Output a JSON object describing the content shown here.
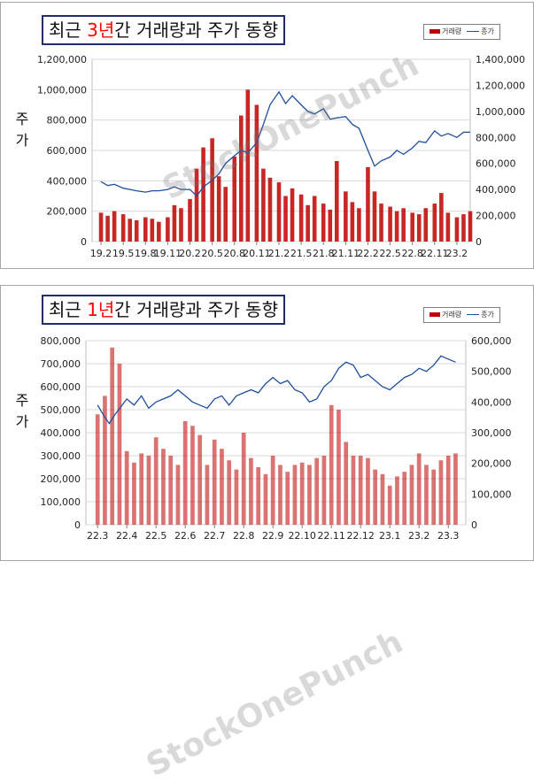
{
  "charts": [
    {
      "title_pre": "최근 ",
      "title_hl": "3년",
      "title_post": "간 거래량과 주가 동향",
      "y_label_1": "주",
      "y_label_2": "가",
      "watermark": "StockOnePunch",
      "legend_volume": "거래량",
      "legend_price": "종가"
    },
    {
      "title_pre": "최근 ",
      "title_hl": "1년",
      "title_post": "간 거래량과 주가 동향",
      "y_label_1": "주",
      "y_label_2": "가",
      "watermark": "StockOnePunch",
      "legend_volume": "거래량",
      "legend_price": "종가"
    }
  ],
  "chart_data": [
    {
      "type": "bar",
      "secondary_type": "line",
      "title": "최근 3년간 거래량과 주가 동향",
      "ylabel": "주가",
      "x_ticks": [
        "19.2",
        "19.5",
        "19.8",
        "19.11",
        "20.2",
        "20.5",
        "20.8",
        "20.11",
        "21.2",
        "21.5",
        "21.8",
        "21.11",
        "22.2",
        "22.5",
        "22.8",
        "22.11",
        "23.2"
      ],
      "y_left_ticks": [
        "0",
        "200,000",
        "400,000",
        "600,000",
        "800,000",
        "1,000,000",
        "1,200,000"
      ],
      "y_right_ticks": [
        "0",
        "200,000",
        "400,000",
        "600,000",
        "800,000",
        "1,000,000",
        "1,200,000",
        "1,400,000"
      ],
      "ylim_left": [
        0,
        1200000
      ],
      "ylim_right": [
        0,
        1400000
      ],
      "grid": true,
      "legend_placement": "top-right",
      "colors": {
        "volume": "#c00000",
        "price": "#1f4e9c"
      },
      "series": [
        {
          "name": "거래량",
          "axis": "left",
          "type": "bar",
          "points": [
            [
              0,
              190000
            ],
            [
              0.3,
              170000
            ],
            [
              0.6,
              200000
            ],
            [
              1,
              180000
            ],
            [
              1.3,
              150000
            ],
            [
              1.6,
              140000
            ],
            [
              2,
              160000
            ],
            [
              2.3,
              150000
            ],
            [
              2.6,
              130000
            ],
            [
              3,
              160000
            ],
            [
              3.3,
              240000
            ],
            [
              3.6,
              220000
            ],
            [
              4,
              280000
            ],
            [
              4.3,
              480000
            ],
            [
              4.6,
              620000
            ],
            [
              5,
              680000
            ],
            [
              5.3,
              430000
            ],
            [
              5.6,
              360000
            ],
            [
              6,
              560000
            ],
            [
              6.3,
              830000
            ],
            [
              6.6,
              1000000
            ],
            [
              7,
              900000
            ],
            [
              7.3,
              480000
            ],
            [
              7.6,
              420000
            ],
            [
              8,
              390000
            ],
            [
              8.3,
              300000
            ],
            [
              8.6,
              350000
            ],
            [
              9,
              310000
            ],
            [
              9.3,
              240000
            ],
            [
              9.6,
              300000
            ],
            [
              10,
              250000
            ],
            [
              10.3,
              210000
            ],
            [
              10.6,
              530000
            ],
            [
              11,
              330000
            ],
            [
              11.3,
              260000
            ],
            [
              11.6,
              220000
            ],
            [
              12,
              490000
            ],
            [
              12.3,
              330000
            ],
            [
              12.6,
              250000
            ],
            [
              13,
              230000
            ],
            [
              13.3,
              200000
            ],
            [
              13.6,
              220000
            ],
            [
              14,
              190000
            ],
            [
              14.3,
              180000
            ],
            [
              14.6,
              220000
            ],
            [
              15,
              250000
            ],
            [
              15.3,
              320000
            ],
            [
              15.6,
              190000
            ],
            [
              16,
              160000
            ],
            [
              16.3,
              180000
            ],
            [
              16.6,
              200000
            ]
          ]
        },
        {
          "name": "종가",
          "axis": "right",
          "type": "line",
          "points": [
            [
              0,
              460000
            ],
            [
              0.3,
              430000
            ],
            [
              0.6,
              440000
            ],
            [
              1,
              410000
            ],
            [
              1.3,
              400000
            ],
            [
              1.6,
              390000
            ],
            [
              2,
              380000
            ],
            [
              2.3,
              390000
            ],
            [
              2.6,
              390000
            ],
            [
              3,
              400000
            ],
            [
              3.3,
              420000
            ],
            [
              3.6,
              400000
            ],
            [
              4,
              400000
            ],
            [
              4.3,
              350000
            ],
            [
              4.6,
              420000
            ],
            [
              5,
              470000
            ],
            [
              5.3,
              520000
            ],
            [
              5.6,
              600000
            ],
            [
              6,
              660000
            ],
            [
              6.3,
              700000
            ],
            [
              6.6,
              680000
            ],
            [
              7,
              760000
            ],
            [
              7.3,
              900000
            ],
            [
              7.6,
              1050000
            ],
            [
              8,
              1150000
            ],
            [
              8.3,
              1060000
            ],
            [
              8.6,
              1120000
            ],
            [
              9,
              1050000
            ],
            [
              9.3,
              1000000
            ],
            [
              9.6,
              980000
            ],
            [
              10,
              1020000
            ],
            [
              10.3,
              940000
            ],
            [
              10.6,
              950000
            ],
            [
              11,
              960000
            ],
            [
              11.3,
              900000
            ],
            [
              11.6,
              870000
            ],
            [
              12,
              700000
            ],
            [
              12.3,
              580000
            ],
            [
              12.6,
              620000
            ],
            [
              13,
              650000
            ],
            [
              13.3,
              700000
            ],
            [
              13.6,
              670000
            ],
            [
              14,
              720000
            ],
            [
              14.3,
              770000
            ],
            [
              14.6,
              760000
            ],
            [
              15,
              850000
            ],
            [
              15.3,
              810000
            ],
            [
              15.6,
              830000
            ],
            [
              16,
              800000
            ],
            [
              16.3,
              840000
            ],
            [
              16.6,
              840000
            ]
          ]
        }
      ]
    },
    {
      "type": "bar",
      "secondary_type": "line",
      "title": "최근 1년간 거래량과 주가 동향",
      "ylabel": "주가",
      "x_ticks": [
        "22.3",
        "22.4",
        "22.5",
        "22.6",
        "22.7",
        "22.8",
        "22.9",
        "22.10",
        "22.11",
        "22.12",
        "23.1",
        "23.2",
        "23.3"
      ],
      "y_left_ticks": [
        "0",
        "100,000",
        "200,000",
        "300,000",
        "400,000",
        "500,000",
        "600,000",
        "700,000",
        "800,000"
      ],
      "y_right_ticks": [
        "0",
        "100,000",
        "200,000",
        "300,000",
        "400,000",
        "500,000",
        "600,000"
      ],
      "ylim_left": [
        0,
        800000
      ],
      "ylim_right": [
        0,
        600000
      ],
      "grid": true,
      "legend_placement": "top-right",
      "colors": {
        "volume": "#c00000",
        "price": "#1f4e9c"
      },
      "series": [
        {
          "name": "거래량",
          "axis": "left",
          "type": "bar",
          "points": [
            [
              0,
              480000
            ],
            [
              0.25,
              560000
            ],
            [
              0.5,
              770000
            ],
            [
              0.75,
              700000
            ],
            [
              1,
              320000
            ],
            [
              1.25,
              270000
            ],
            [
              1.5,
              310000
            ],
            [
              1.75,
              300000
            ],
            [
              2,
              380000
            ],
            [
              2.25,
              330000
            ],
            [
              2.5,
              300000
            ],
            [
              2.75,
              260000
            ],
            [
              3,
              450000
            ],
            [
              3.25,
              430000
            ],
            [
              3.5,
              390000
            ],
            [
              3.75,
              260000
            ],
            [
              4,
              370000
            ],
            [
              4.25,
              330000
            ],
            [
              4.5,
              280000
            ],
            [
              4.75,
              240000
            ],
            [
              5,
              400000
            ],
            [
              5.25,
              290000
            ],
            [
              5.5,
              250000
            ],
            [
              5.75,
              220000
            ],
            [
              6,
              300000
            ],
            [
              6.25,
              260000
            ],
            [
              6.5,
              230000
            ],
            [
              6.75,
              260000
            ],
            [
              7,
              270000
            ],
            [
              7.25,
              260000
            ],
            [
              7.5,
              290000
            ],
            [
              7.75,
              300000
            ],
            [
              8,
              520000
            ],
            [
              8.25,
              500000
            ],
            [
              8.5,
              360000
            ],
            [
              8.75,
              300000
            ],
            [
              9,
              300000
            ],
            [
              9.25,
              290000
            ],
            [
              9.5,
              240000
            ],
            [
              9.75,
              220000
            ],
            [
              10,
              170000
            ],
            [
              10.25,
              210000
            ],
            [
              10.5,
              230000
            ],
            [
              10.75,
              260000
            ],
            [
              11,
              310000
            ],
            [
              11.25,
              260000
            ],
            [
              11.5,
              240000
            ],
            [
              11.75,
              280000
            ],
            [
              12,
              300000
            ],
            [
              12.25,
              310000
            ]
          ]
        },
        {
          "name": "종가",
          "axis": "right",
          "type": "line",
          "points": [
            [
              0,
              390000
            ],
            [
              0.25,
              350000
            ],
            [
              0.4,
              330000
            ],
            [
              0.6,
              360000
            ],
            [
              1,
              410000
            ],
            [
              1.25,
              390000
            ],
            [
              1.5,
              420000
            ],
            [
              1.75,
              380000
            ],
            [
              2,
              400000
            ],
            [
              2.25,
              410000
            ],
            [
              2.5,
              420000
            ],
            [
              2.75,
              440000
            ],
            [
              3,
              420000
            ],
            [
              3.25,
              400000
            ],
            [
              3.5,
              390000
            ],
            [
              3.75,
              380000
            ],
            [
              4,
              410000
            ],
            [
              4.25,
              420000
            ],
            [
              4.5,
              390000
            ],
            [
              4.75,
              420000
            ],
            [
              5,
              430000
            ],
            [
              5.25,
              440000
            ],
            [
              5.5,
              430000
            ],
            [
              5.75,
              460000
            ],
            [
              6,
              480000
            ],
            [
              6.25,
              460000
            ],
            [
              6.5,
              470000
            ],
            [
              6.75,
              440000
            ],
            [
              7,
              430000
            ],
            [
              7.25,
              400000
            ],
            [
              7.5,
              410000
            ],
            [
              7.75,
              450000
            ],
            [
              8,
              470000
            ],
            [
              8.25,
              510000
            ],
            [
              8.5,
              530000
            ],
            [
              8.75,
              520000
            ],
            [
              9,
              480000
            ],
            [
              9.25,
              490000
            ],
            [
              9.5,
              470000
            ],
            [
              9.75,
              450000
            ],
            [
              10,
              440000
            ],
            [
              10.25,
              460000
            ],
            [
              10.5,
              480000
            ],
            [
              10.75,
              490000
            ],
            [
              11,
              510000
            ],
            [
              11.25,
              500000
            ],
            [
              11.5,
              520000
            ],
            [
              11.75,
              550000
            ],
            [
              12,
              540000
            ],
            [
              12.25,
              530000
            ]
          ]
        }
      ]
    }
  ]
}
